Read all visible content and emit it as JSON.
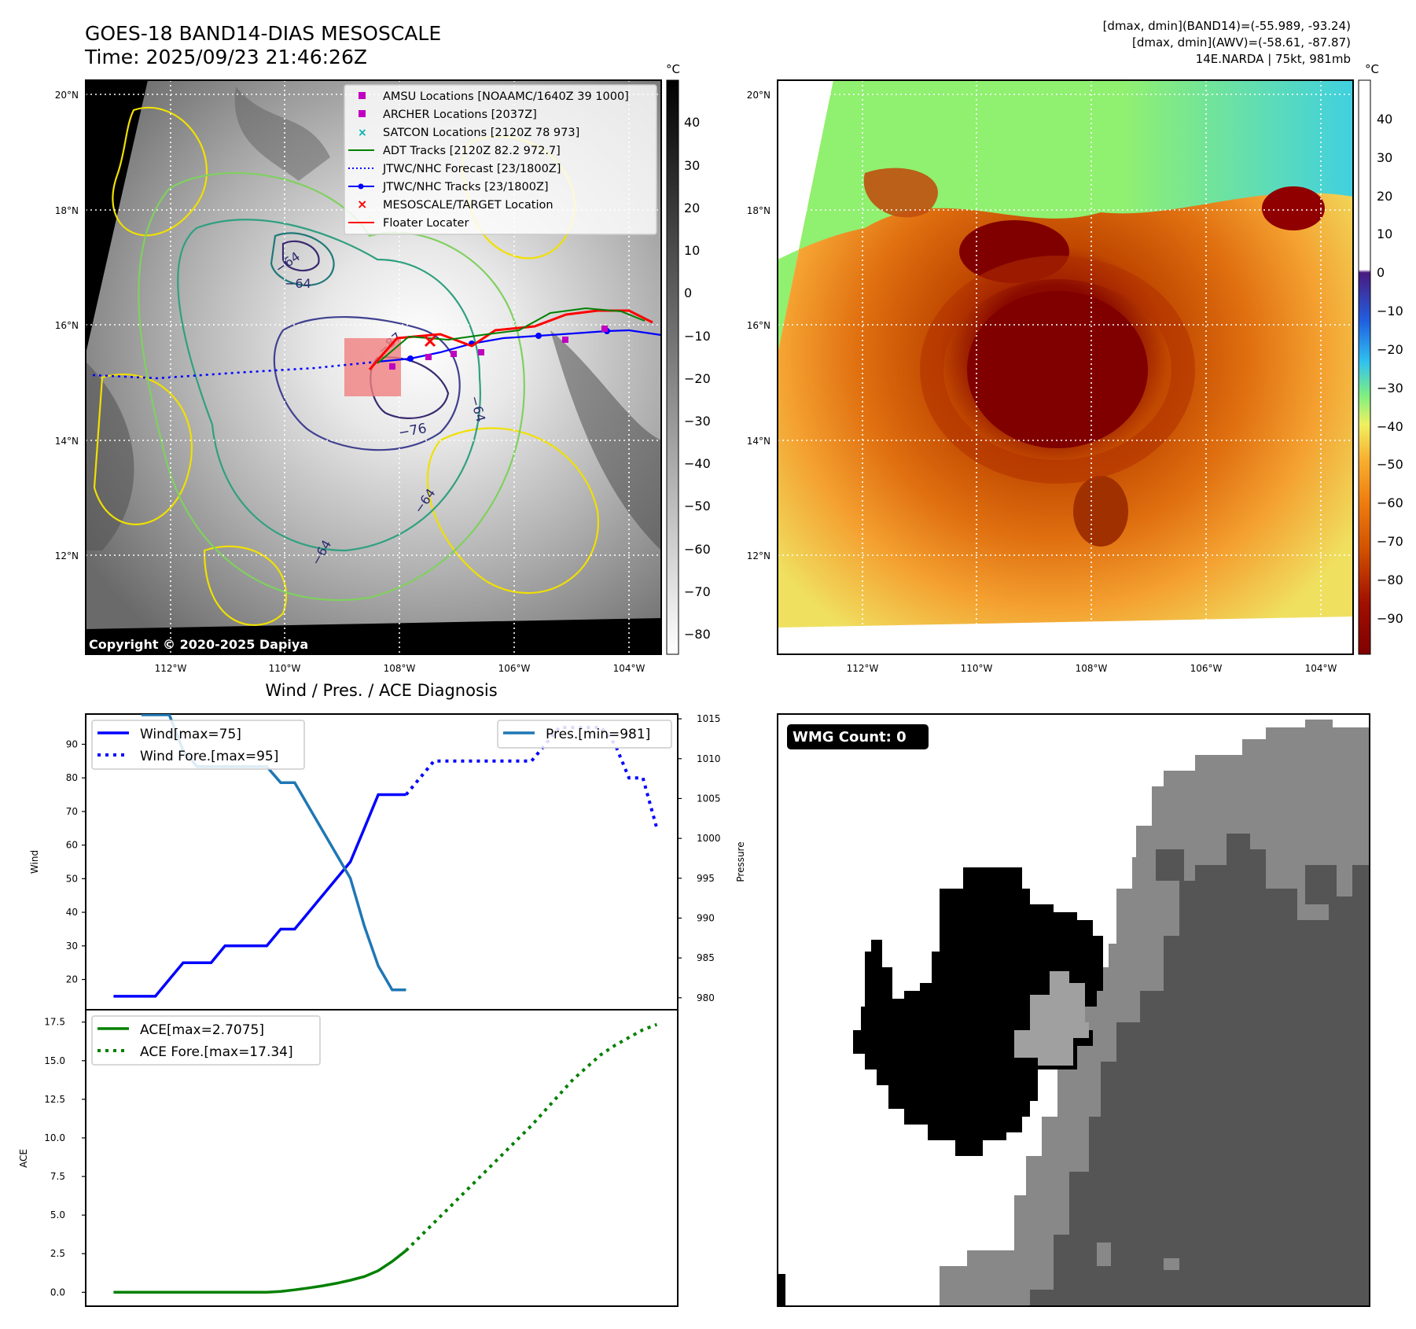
{
  "header": {
    "title_line1": "GOES-18 BAND14-DIAS MESOSCALE",
    "title_line2": "Time: 2025/09/23 21:46:26Z",
    "info_line1": "[dmax, dmin](BAND14)=(-55.989, -93.24)",
    "info_line2": "[dmax, dmin](AWV)=(-58.61, -87.87)",
    "info_line3": "14E.NARDA | 75kt, 981mb"
  },
  "map_axes": {
    "lat_labels": [
      "20°N",
      "18°N",
      "16°N",
      "14°N",
      "12°N"
    ],
    "lon_labels": [
      "112°W",
      "110°W",
      "108°W",
      "106°W",
      "104°W"
    ],
    "unit": "°C"
  },
  "ir_panel": {
    "copyright": "Copyright © 2020-2025 Dapiya",
    "colorbar_ticks": [
      "40",
      "30",
      "20",
      "10",
      "0",
      "−10",
      "−20",
      "−30",
      "−40",
      "−50",
      "−60",
      "−70",
      "−80"
    ],
    "contour_labels": [
      "−64",
      "−64",
      "−76",
      "−87",
      "−64",
      "−64",
      "−64"
    ],
    "legend": [
      {
        "label": "AMSU Locations [NOAAMC/1640Z 39 1000]",
        "color": "#c000c0",
        "symbol": "square"
      },
      {
        "label": "ARCHER Locations [2037Z]",
        "color": "#c000c0",
        "symbol": "square"
      },
      {
        "label": "SATCON Locations [2120Z 78 973]",
        "color": "#00b0b0",
        "symbol": "x"
      },
      {
        "label": "ADT Tracks [2120Z 82.2 972.7]",
        "color": "#008000",
        "symbol": "line"
      },
      {
        "label": "JTWC/NHC Forecast [23/1800Z]",
        "color": "#0000ff",
        "symbol": "dotted"
      },
      {
        "label": "JTWC/NHC Tracks [23/1800Z]",
        "color": "#0000ff",
        "symbol": "line-dot"
      },
      {
        "label": "MESOSCALE/TARGET Location",
        "color": "#ff0000",
        "symbol": "x"
      },
      {
        "label": "Floater Locater",
        "color": "#ff0000",
        "symbol": "line"
      }
    ]
  },
  "awv_panel": {
    "colorbar_ticks": [
      "40",
      "30",
      "20",
      "10",
      "0",
      "−10",
      "−20",
      "−30",
      "−40",
      "−50",
      "−60",
      "−70",
      "−80",
      "−90"
    ]
  },
  "wmg_panel": {
    "label": "WMG Count: 0"
  },
  "chart_data": [
    {
      "type": "line",
      "title": "Wind / Pres. / ACE Diagnosis",
      "ylabel": "Wind",
      "ylabel_right": "Pressure",
      "ylim": [
        11,
        99
      ],
      "ylim_right": [
        978.5,
        1015.6
      ],
      "yticks": [
        20,
        30,
        40,
        50,
        60,
        70,
        80,
        90
      ],
      "yticks_right": [
        980,
        985,
        990,
        995,
        1000,
        1005,
        1010,
        1015
      ],
      "x": [
        0,
        1,
        2,
        3,
        4,
        5,
        6,
        7,
        8,
        9,
        10,
        11,
        12,
        13,
        14,
        15,
        16,
        17,
        18,
        19,
        20,
        21,
        22,
        23,
        24,
        25,
        26,
        27,
        28,
        29,
        30,
        31,
        32,
        33,
        34,
        35,
        36,
        37,
        38,
        39
      ],
      "xlim": [
        -2,
        40.5
      ],
      "series": [
        {
          "name": "Wind[max=75]",
          "axis": "left",
          "color": "#0000ff",
          "style": "solid",
          "x": [
            0,
            1,
            2,
            3,
            4,
            5,
            6,
            7,
            8,
            9,
            10,
            11,
            12,
            13,
            14,
            15,
            16,
            17,
            18,
            19,
            20,
            21
          ],
          "values": [
            15,
            15,
            15,
            15,
            20,
            25,
            25,
            25,
            30,
            30,
            30,
            30,
            35,
            35,
            40,
            45,
            50,
            55,
            65,
            75,
            75,
            75
          ]
        },
        {
          "name": "Wind Fore.[max=95]",
          "axis": "left",
          "color": "#0000ff",
          "style": "dotted",
          "x": [
            21,
            22,
            23,
            24,
            25,
            26,
            27,
            28,
            29,
            30,
            31,
            32,
            33,
            34,
            35,
            36,
            37,
            38,
            39
          ],
          "values": [
            75,
            80,
            85,
            85,
            85,
            85,
            85,
            85,
            85,
            85,
            90,
            95,
            95,
            95,
            95,
            90,
            80,
            80,
            65
          ]
        },
        {
          "name": "Pres.[min=981]",
          "axis": "right",
          "color": "#1f77b4",
          "style": "solid",
          "x": [
            2,
            3,
            4,
            5,
            6,
            7,
            8,
            9,
            10,
            11,
            12,
            13,
            14,
            15,
            16,
            17,
            18,
            19,
            20,
            21
          ],
          "values": [
            1015.5,
            1015.5,
            1015.5,
            1011,
            1009,
            1009,
            1009,
            1009,
            1009,
            1009,
            1007,
            1007,
            1004,
            1001,
            998,
            995,
            989,
            984,
            981,
            981
          ]
        }
      ],
      "legend": [
        "Wind[max=75]",
        "Wind Fore.[max=95]",
        "Pres.[min=981]"
      ]
    },
    {
      "type": "line",
      "ylabel": "ACE",
      "ylim": [
        -0.9,
        18.3
      ],
      "yticks": [
        0.0,
        2.5,
        5.0,
        7.5,
        10.0,
        12.5,
        15.0,
        17.5
      ],
      "xlim": [
        -2,
        40.5
      ],
      "series": [
        {
          "name": "ACE[max=2.7075]",
          "color": "#008000",
          "style": "solid",
          "x": [
            0,
            1,
            2,
            3,
            4,
            5,
            6,
            7,
            8,
            9,
            10,
            11,
            12,
            13,
            14,
            15,
            16,
            17,
            18,
            19,
            20,
            21
          ],
          "values": [
            0,
            0,
            0,
            0,
            0,
            0,
            0,
            0,
            0,
            0,
            0,
            0,
            0.06,
            0.16,
            0.28,
            0.42,
            0.58,
            0.78,
            1.02,
            1.4,
            2.0,
            2.7075
          ]
        },
        {
          "name": "ACE Fore.[max=17.34]",
          "color": "#008000",
          "style": "dotted",
          "x": [
            21,
            22,
            23,
            24,
            25,
            26,
            27,
            28,
            29,
            30,
            31,
            32,
            33,
            34,
            35,
            36,
            37,
            38,
            39
          ],
          "values": [
            2.7075,
            3.6,
            4.5,
            5.4,
            6.3,
            7.2,
            8.1,
            9.0,
            9.9,
            10.8,
            11.8,
            12.8,
            13.8,
            14.6,
            15.4,
            16.0,
            16.5,
            17.0,
            17.34
          ]
        }
      ],
      "legend": [
        "ACE[max=2.7075]",
        "ACE Fore.[max=17.34]"
      ]
    }
  ]
}
